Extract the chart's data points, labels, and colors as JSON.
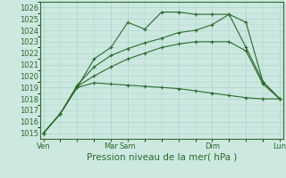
{
  "bg_color": "#cce8e0",
  "grid_color": "#aad4cc",
  "line_color": "#2d6a2d",
  "title": "Pression niveau de la mer( hPa )",
  "ylabel_ticks": [
    1015,
    1016,
    1017,
    1018,
    1019,
    1020,
    1021,
    1022,
    1023,
    1024,
    1025,
    1026
  ],
  "ylim": [
    1014.5,
    1026.5
  ],
  "x_tick_labels": [
    "Ven",
    "",
    "Mar",
    "Sam",
    "",
    "Dim",
    "",
    "Lun"
  ],
  "x_tick_positions": [
    0,
    2,
    4,
    5,
    8,
    10,
    12,
    14
  ],
  "xlim": [
    -0.2,
    14.2
  ],
  "series": [
    {
      "x": [
        0,
        1,
        2,
        3,
        4,
        5,
        6,
        7,
        8,
        9,
        10,
        11,
        12,
        13,
        14
      ],
      "y": [
        1015.0,
        1016.7,
        1019.0,
        1021.5,
        1022.5,
        1024.7,
        1024.1,
        1025.6,
        1025.6,
        1025.4,
        1025.4,
        1025.4,
        1024.7,
        1019.5,
        1018.0
      ]
    },
    {
      "x": [
        0,
        1,
        2,
        3,
        4,
        5,
        6,
        7,
        8,
        9,
        10,
        11,
        12,
        13,
        14
      ],
      "y": [
        1015.0,
        1016.7,
        1019.2,
        1020.8,
        1021.8,
        1022.4,
        1022.9,
        1023.3,
        1023.8,
        1024.0,
        1024.5,
        1025.4,
        1022.5,
        1019.5,
        1018.0
      ]
    },
    {
      "x": [
        0,
        1,
        2,
        3,
        4,
        5,
        6,
        7,
        8,
        9,
        10,
        11,
        12,
        13,
        14
      ],
      "y": [
        1015.0,
        1016.7,
        1019.1,
        1020.0,
        1020.8,
        1021.5,
        1022.0,
        1022.5,
        1022.8,
        1023.0,
        1023.0,
        1023.0,
        1022.2,
        1019.3,
        1018.0
      ]
    },
    {
      "x": [
        0,
        1,
        2,
        3,
        4,
        5,
        6,
        7,
        8,
        9,
        10,
        11,
        12,
        13,
        14
      ],
      "y": [
        1015.0,
        1016.7,
        1019.0,
        1019.4,
        1019.3,
        1019.2,
        1019.1,
        1019.0,
        1018.9,
        1018.7,
        1018.5,
        1018.3,
        1018.1,
        1018.0,
        1018.0
      ]
    }
  ]
}
